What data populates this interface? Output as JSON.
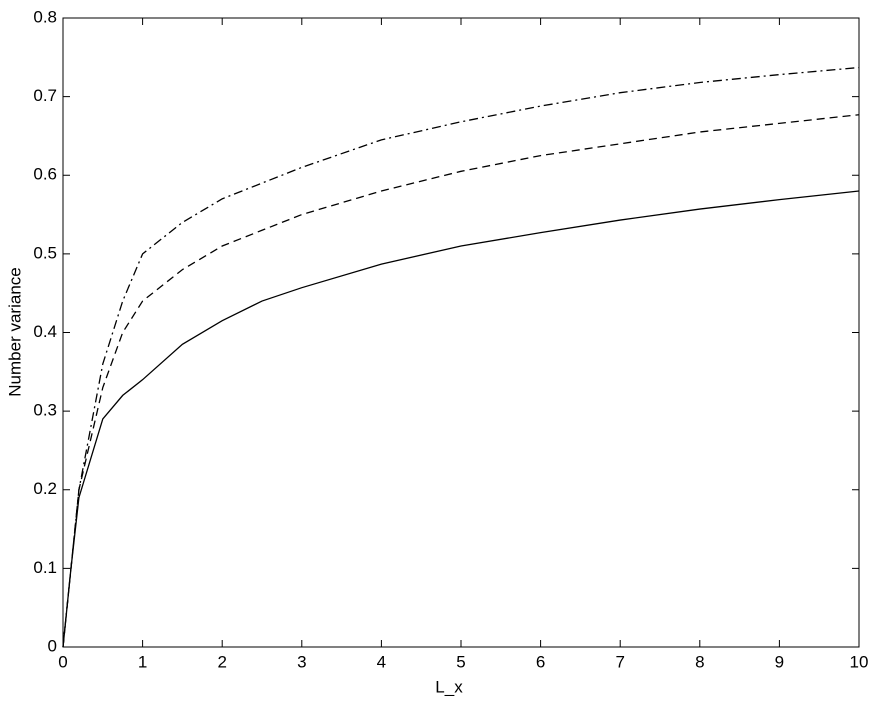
{
  "chart_data": {
    "type": "line",
    "xlabel": "L_x",
    "ylabel": "Number variance",
    "x": [
      0,
      0.1,
      0.2,
      0.5,
      0.75,
      1,
      1.5,
      2,
      2.5,
      3,
      4,
      5,
      6,
      7,
      8,
      9,
      10
    ],
    "series": [
      {
        "color": "#000000",
        "dash": "solid",
        "values": [
          0,
          0.1,
          0.19,
          0.29,
          0.32,
          0.34,
          0.385,
          0.415,
          0.44,
          0.457,
          0.487,
          0.51,
          0.527,
          0.543,
          0.557,
          0.569,
          0.58
        ]
      },
      {
        "color": "#000000",
        "dash": "dashed",
        "values": [
          0,
          0.1,
          0.2,
          0.33,
          0.4,
          0.44,
          0.48,
          0.51,
          0.53,
          0.55,
          0.58,
          0.605,
          0.625,
          0.64,
          0.655,
          0.666,
          0.677
        ]
      },
      {
        "color": "#000000",
        "dash": "dashdot",
        "values": [
          0,
          0.1,
          0.2,
          0.36,
          0.44,
          0.5,
          0.54,
          0.57,
          0.59,
          0.61,
          0.645,
          0.668,
          0.688,
          0.705,
          0.718,
          0.728,
          0.737
        ]
      }
    ],
    "xlim": [
      0,
      10
    ],
    "xticks": [
      0,
      1,
      2,
      3,
      4,
      5,
      6,
      7,
      8,
      9,
      10
    ],
    "ylim": [
      0,
      0.8
    ],
    "yticks": [
      0,
      0.1,
      0.2,
      0.3,
      0.4,
      0.5,
      0.6,
      0.7,
      0.8
    ],
    "grid": false
  }
}
